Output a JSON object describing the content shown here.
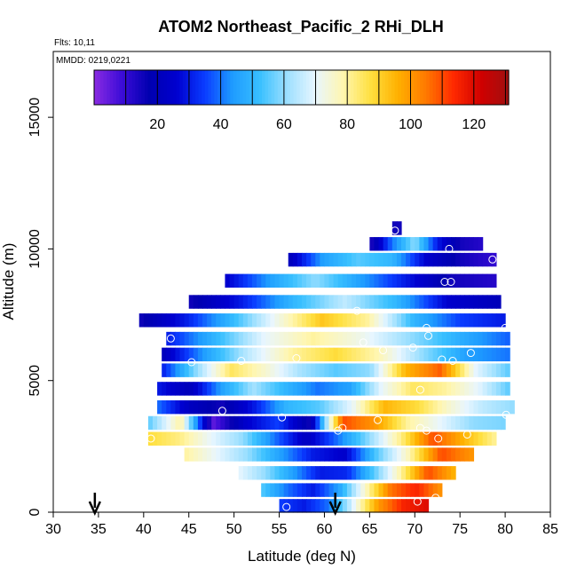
{
  "chart_data": {
    "type": "heatmap",
    "title": "ATOM2 Northeast_Pacific_2 RHi_DLH",
    "flights_label": "Flts: 10,11",
    "date_label": "MMDD: 0219,0221",
    "xlabel": "Latitude (deg N)",
    "ylabel": "Altitude (m)",
    "xlim": [
      30,
      85
    ],
    "ylim": [
      0,
      17500
    ],
    "x_ticks": [
      "30",
      "35",
      "40",
      "45",
      "50",
      "55",
      "60",
      "65",
      "70",
      "75",
      "80",
      "85"
    ],
    "y_ticks": [
      "0",
      "5000",
      "10000",
      "15000"
    ],
    "colorbar": {
      "range": [
        0,
        131
      ],
      "ticks": [
        "20",
        "40",
        "60",
        "80",
        "100",
        "120"
      ],
      "tick_values": [
        20,
        40,
        60,
        80,
        100,
        120
      ],
      "colors": [
        "#8a2be2",
        "#3c0cd8",
        "#0000b0",
        "#0000d0",
        "#0a3cff",
        "#1e9bff",
        "#39c0ff",
        "#9ee0ff",
        "#e8f6ff",
        "#fff6b0",
        "#ffe040",
        "#ffb000",
        "#ff7a00",
        "#ff2a00",
        "#d00000",
        "#a01010"
      ]
    },
    "arrows_lat": [
      34.6,
      61.2
    ],
    "bands": [
      {
        "alt": 10800,
        "lat": [
          67.5,
          68.5
        ],
        "v": [
          15,
          15
        ]
      },
      {
        "alt": 10200,
        "lat": [
          65.0,
          77.5
        ],
        "v": [
          12,
          40,
          60,
          30,
          15,
          12
        ]
      },
      {
        "alt": 9600,
        "lat": [
          56.0,
          79.0
        ],
        "v": [
          20,
          45,
          55,
          50,
          25,
          15,
          10
        ]
      },
      {
        "alt": 8800,
        "lat": [
          49.0,
          79.0
        ],
        "v": [
          25,
          45,
          60,
          45,
          30,
          15,
          12
        ]
      },
      {
        "alt": 8000,
        "lat": [
          45.0,
          79.5
        ],
        "v": [
          15,
          30,
          50,
          65,
          50,
          25,
          20
        ]
      },
      {
        "alt": 7300,
        "lat": [
          39.5,
          80.0
        ],
        "v": [
          15,
          30,
          50,
          72,
          92,
          80,
          50,
          35,
          30
        ]
      },
      {
        "alt": 6600,
        "lat": [
          42.5,
          80.5
        ],
        "v": [
          30,
          50,
          70,
          80,
          72,
          60,
          48,
          38
        ]
      },
      {
        "alt": 6000,
        "lat": [
          42.0,
          80.5
        ],
        "v": [
          20,
          45,
          65,
          80,
          88,
          78,
          60,
          45,
          40
        ]
      },
      {
        "alt": 5400,
        "lat": [
          42.0,
          80.5
        ],
        "v": [
          30,
          60,
          85,
          75,
          62,
          55,
          60,
          95,
          108,
          70,
          55
        ]
      },
      {
        "alt": 4700,
        "lat": [
          41.5,
          80.5
        ],
        "v": [
          30,
          20,
          45,
          62,
          50,
          40,
          45,
          70,
          85,
          80,
          70,
          55
        ]
      },
      {
        "alt": 4000,
        "lat": [
          41.5,
          81.0
        ],
        "v": [
          40,
          22,
          15,
          30,
          50,
          55,
          70,
          95,
          88,
          75,
          65,
          60
        ]
      },
      {
        "alt": 3400,
        "lat": [
          40.5,
          80.0
        ],
        "v": [
          55,
          80,
          5,
          25,
          35,
          15,
          110,
          100,
          80,
          70,
          60,
          58
        ]
      },
      {
        "alt": 2800,
        "lat": [
          40.5,
          79.0
        ],
        "v": [
          88,
          82,
          70,
          60,
          40,
          22,
          40,
          60,
          82,
          110,
          95,
          80
        ]
      },
      {
        "alt": 2200,
        "lat": [
          44.5,
          76.5
        ],
        "v": [
          80,
          70,
          60,
          45,
          30,
          25,
          55,
          78,
          110,
          100
        ]
      },
      {
        "alt": 1500,
        "lat": [
          50.5,
          74.5
        ],
        "v": [
          70,
          60,
          45,
          30,
          32,
          55,
          80,
          110,
          95
        ]
      },
      {
        "alt": 850,
        "lat": [
          53.0,
          73.0
        ],
        "v": [
          55,
          40,
          30,
          45,
          75,
          105,
          115,
          100
        ]
      },
      {
        "alt": 250,
        "lat": [
          55.0,
          71.5
        ],
        "v": [
          35,
          30,
          40,
          70,
          100,
          115,
          120
        ]
      }
    ],
    "points": [
      [
        67.8,
        10700
      ],
      [
        73.8,
        10000
      ],
      [
        78.6,
        9600
      ],
      [
        73.3,
        8750
      ],
      [
        74.0,
        8750
      ],
      [
        63.6,
        7650
      ],
      [
        80.0,
        7000
      ],
      [
        43.0,
        6600
      ],
      [
        64.3,
        6450
      ],
      [
        71.3,
        7000
      ],
      [
        71.5,
        6700
      ],
      [
        69.8,
        6250
      ],
      [
        66.5,
        6150
      ],
      [
        76.2,
        6050
      ],
      [
        45.3,
        5700
      ],
      [
        50.8,
        5750
      ],
      [
        56.9,
        5850
      ],
      [
        73.0,
        5800
      ],
      [
        74.2,
        5750
      ],
      [
        70.6,
        4650
      ],
      [
        48.7,
        3850
      ],
      [
        55.3,
        3600
      ],
      [
        65.9,
        3500
      ],
      [
        80.1,
        3700
      ],
      [
        62.0,
        3200
      ],
      [
        61.5,
        3100
      ],
      [
        70.6,
        3200
      ],
      [
        71.3,
        3100
      ],
      [
        40.8,
        2800
      ],
      [
        72.6,
        2800
      ],
      [
        75.8,
        2950
      ],
      [
        72.3,
        550
      ],
      [
        70.3,
        400
      ],
      [
        55.8,
        200
      ]
    ]
  }
}
